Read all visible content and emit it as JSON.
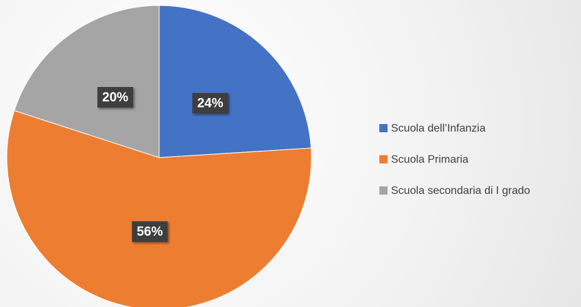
{
  "chart_data": {
    "type": "pie",
    "categories": [
      "Scuola dell’Infanzia",
      "Scuola Primaria",
      "Scuola secondaria di I grado"
    ],
    "values": [
      24,
      56,
      20
    ],
    "value_labels": [
      "24%",
      "56%",
      "20%"
    ],
    "colors": [
      "#4472c4",
      "#ed7d31",
      "#a5a5a5"
    ],
    "legend": "right"
  }
}
